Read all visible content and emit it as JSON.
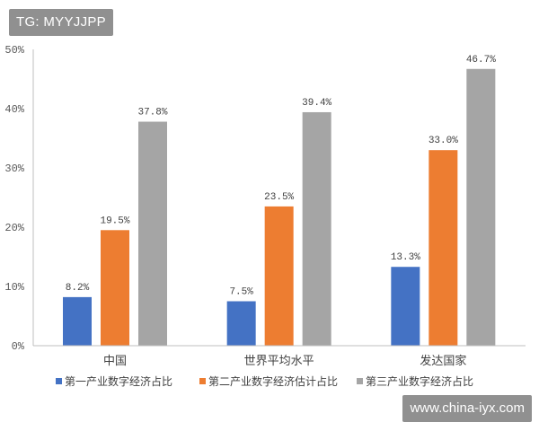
{
  "watermarks": {
    "top": "TG: MYYJJPP",
    "bottom": "www.china-iyx.com"
  },
  "colors": {
    "axis": "#bfbfbf",
    "tick_text": "#595959",
    "label_text": "#404040"
  },
  "chart_data": {
    "type": "bar",
    "title": "",
    "xlabel": "",
    "ylabel": "",
    "categories": [
      "中国",
      "世界平均水平",
      "发达国家"
    ],
    "ylim": [
      0,
      50
    ],
    "yticks": [
      "0%",
      "10%",
      "20%",
      "30%",
      "40%",
      "50%"
    ],
    "grid": false,
    "legend_position": "bottom",
    "series": [
      {
        "name": "第一产业数字经济占比",
        "color": "#4472c4",
        "values": [
          8.2,
          7.5,
          13.3
        ],
        "labels": [
          "8.2%",
          "7.5%",
          "13.3%"
        ]
      },
      {
        "name": "第二产业数字经济估计占比",
        "color": "#ed7d31",
        "values": [
          19.5,
          23.5,
          33.0
        ],
        "labels": [
          "19.5%",
          "23.5%",
          "33.0%"
        ]
      },
      {
        "name": "第三产业数字经济占比",
        "color": "#a5a5a5",
        "values": [
          37.8,
          39.4,
          46.7
        ],
        "labels": [
          "37.8%",
          "39.4%",
          "46.7%"
        ]
      }
    ]
  }
}
